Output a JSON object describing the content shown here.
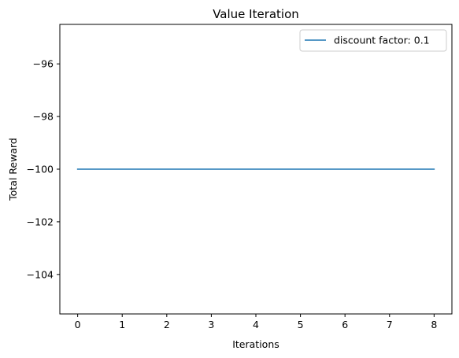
{
  "chart_data": {
    "type": "line",
    "title": "Value Iteration",
    "xlabel": "Iterations",
    "ylabel": "Total Reward",
    "xlim": [
      -0.4,
      8.4
    ],
    "ylim": [
      -105.5,
      -94.5
    ],
    "xticks": [
      0,
      1,
      2,
      3,
      4,
      5,
      6,
      7,
      8
    ],
    "yticks": [
      -104,
      -102,
      -100,
      -98,
      -96
    ],
    "ytick_labels": [
      "−104",
      "−102",
      "−100",
      "−98",
      "−96"
    ],
    "grid": false,
    "legend_position": "top-right",
    "series": [
      {
        "name": "discount factor: 0.1",
        "color": "#1f77b4",
        "x": [
          0,
          1,
          2,
          3,
          4,
          5,
          6,
          7,
          8
        ],
        "y": [
          -100,
          -100,
          -100,
          -100,
          -100,
          -100,
          -100,
          -100,
          -100
        ]
      }
    ]
  }
}
